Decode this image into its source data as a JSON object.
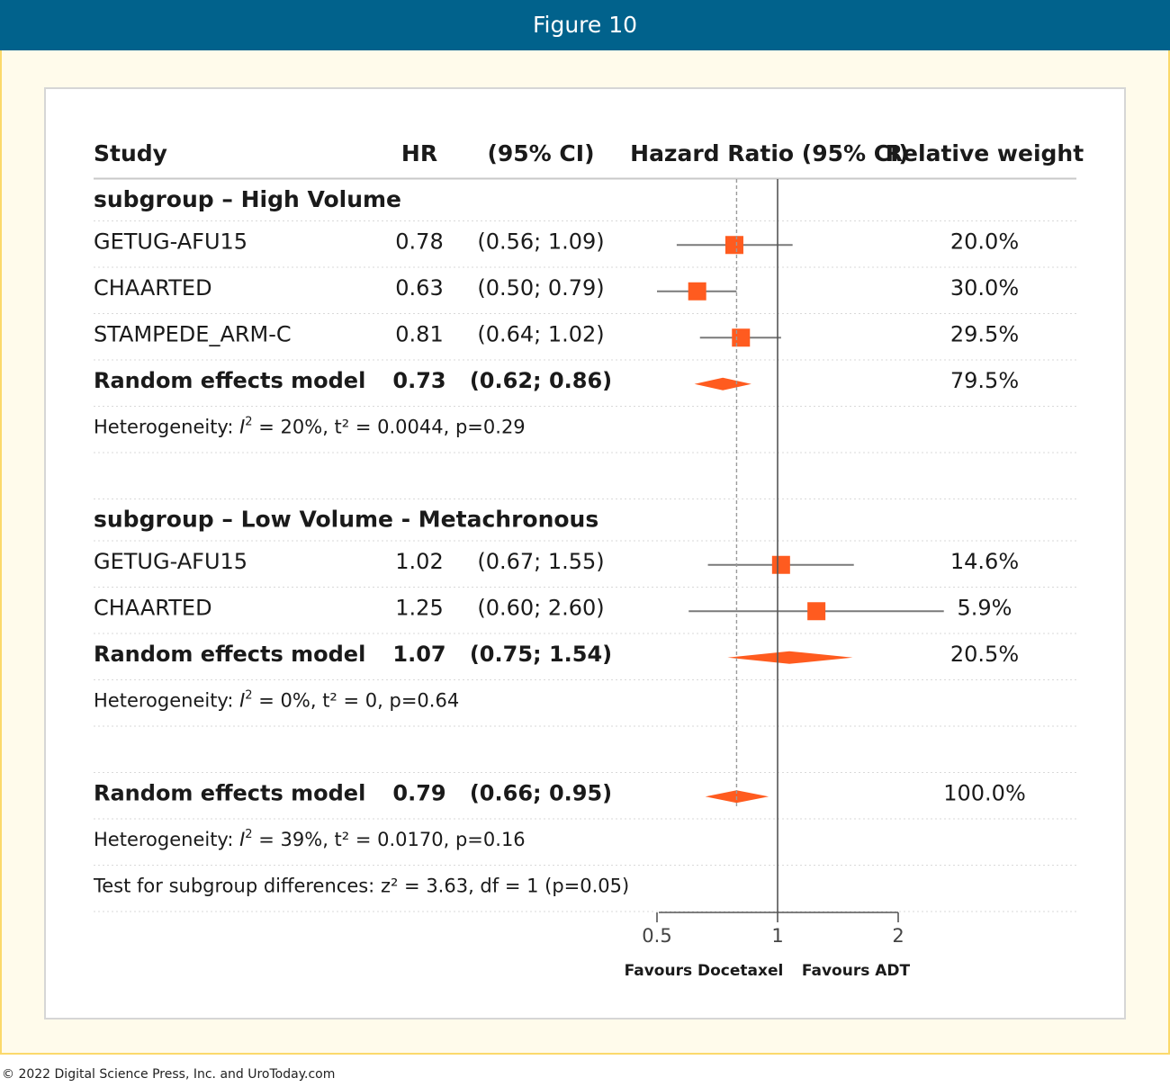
{
  "figure_title": "Figure 10",
  "copyright": "© 2022 Digital Science Press, Inc. and UroToday.com",
  "colors": {
    "header": "#01628c",
    "marker": "#ff5b1f",
    "frame_border": "#fbd96b",
    "frame_fill": "#fffbeb"
  },
  "chart_data": {
    "type": "forest",
    "columns": [
      "Study",
      "HR",
      "(95% CI)",
      "Hazard Ratio (95% CI)",
      "Relative weight"
    ],
    "x_axis": {
      "scale": "log",
      "ticks": [
        0.5,
        1,
        2
      ],
      "tick_labels": [
        "0.5",
        "1",
        "2"
      ],
      "left_label": "Favours Docetaxel",
      "right_label": "Favours ADT",
      "reference_line": 1,
      "pooled_line": 0.79
    },
    "subgroups": [
      {
        "title": "subgroup – High Volume",
        "studies": [
          {
            "study": "GETUG-AFU15",
            "hr": 0.78,
            "lo": 0.56,
            "hi": 1.09,
            "hr_text": "0.78",
            "ci_text": "(0.56; 1.09)",
            "weight_text": "20.0%"
          },
          {
            "study": "CHAARTED",
            "hr": 0.63,
            "lo": 0.5,
            "hi": 0.79,
            "hr_text": "0.63",
            "ci_text": "(0.50; 0.79)",
            "weight_text": "30.0%"
          },
          {
            "study": "STAMPEDE_ARM-C",
            "hr": 0.81,
            "lo": 0.64,
            "hi": 1.02,
            "hr_text": "0.81",
            "ci_text": "(0.64; 1.02)",
            "weight_text": "29.5%"
          }
        ],
        "model": {
          "label": "Random effects model",
          "hr": 0.73,
          "lo": 0.62,
          "hi": 0.86,
          "hr_text": "0.73",
          "ci_text": "(0.62; 0.86)",
          "weight_text": "79.5%"
        },
        "heterogeneity": {
          "prefix": "Heterogeneity: ",
          "i2": "I",
          "sup": "2",
          "rest": " = 20%, t² = 0.0044, p=0.29"
        }
      },
      {
        "title": "subgroup – Low Volume - Metachronous",
        "studies": [
          {
            "study": "GETUG-AFU15",
            "hr": 1.02,
            "lo": 0.67,
            "hi": 1.55,
            "hr_text": "1.02",
            "ci_text": "(0.67; 1.55)",
            "weight_text": "14.6%"
          },
          {
            "study": "CHAARTED",
            "hr": 1.25,
            "lo": 0.6,
            "hi": 2.6,
            "hr_text": "1.25",
            "ci_text": "(0.60; 2.60)",
            "weight_text": "5.9%"
          }
        ],
        "model": {
          "label": "Random effects model",
          "hr": 1.07,
          "lo": 0.75,
          "hi": 1.54,
          "hr_text": "1.07",
          "ci_text": "(0.75; 1.54)",
          "weight_text": "20.5%"
        },
        "heterogeneity": {
          "prefix": "Heterogeneity: ",
          "i2": "I",
          "sup": "2",
          "rest": " = 0%, t² = 0, p=0.64"
        }
      }
    ],
    "overall": {
      "model": {
        "label": "Random effects model",
        "hr": 0.79,
        "lo": 0.66,
        "hi": 0.95,
        "hr_text": "0.79",
        "ci_text": "(0.66; 0.95)",
        "weight_text": "100.0%"
      },
      "heterogeneity": {
        "prefix": "Heterogeneity: ",
        "i2": "I",
        "sup": "2",
        "rest": " = 39%, t² = 0.0170, p=0.16"
      },
      "subgroup_test": "Test for subgroup differences: z² = 3.63, df = 1 (p=0.05)"
    }
  }
}
